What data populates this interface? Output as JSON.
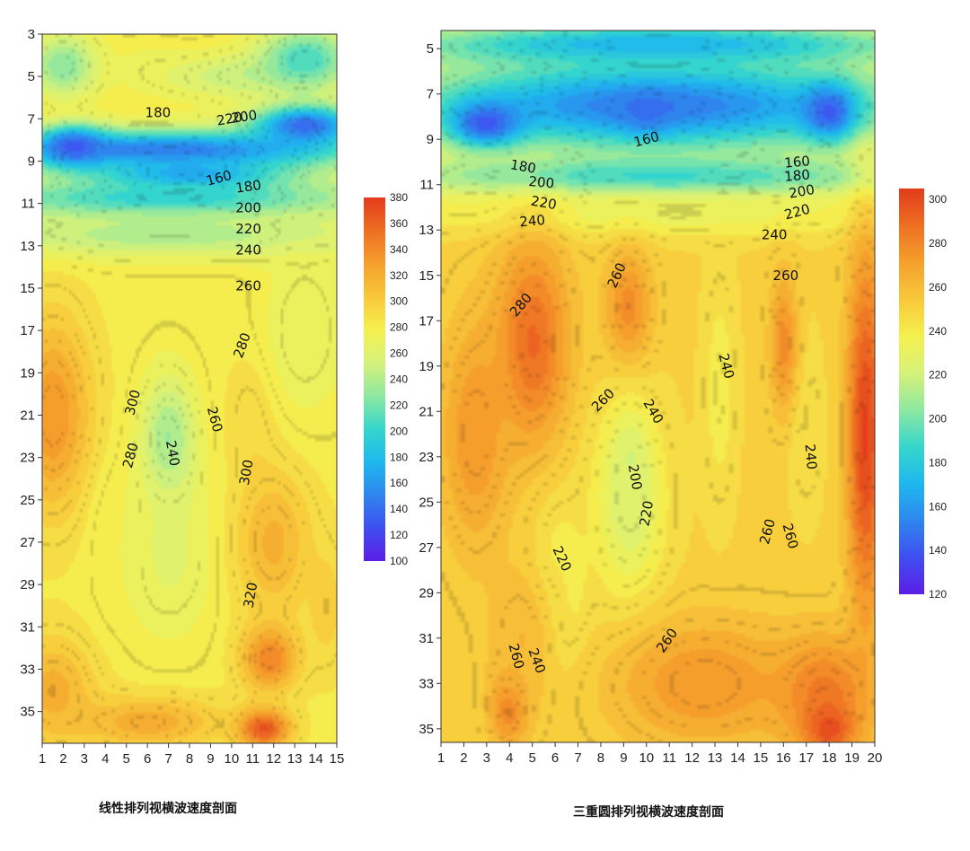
{
  "chart_data": [
    {
      "type": "heatmap",
      "subtype": "filled-contour",
      "title": "线性排列视横波速度剖面",
      "x_ticks": [
        1,
        2,
        3,
        4,
        5,
        6,
        7,
        8,
        9,
        10,
        11,
        12,
        13,
        14,
        15
      ],
      "y_ticks": [
        3,
        5,
        7,
        9,
        11,
        13,
        15,
        17,
        19,
        21,
        23,
        25,
        27,
        29,
        31,
        33,
        35
      ],
      "xlim": [
        1,
        15
      ],
      "ylim": [
        3,
        36.5
      ],
      "y_inverted": true,
      "colorbar": {
        "min": 100,
        "max": 380,
        "ticks": [
          100,
          120,
          140,
          160,
          180,
          200,
          220,
          240,
          260,
          280,
          300,
          320,
          340,
          360,
          380
        ]
      },
      "colorscale": [
        "#5c1ee6",
        "#3f4ef0",
        "#2e86ee",
        "#1eb8ef",
        "#36d6cc",
        "#8ee8a0",
        "#d6f27a",
        "#f5f04e",
        "#f8c83a",
        "#f5a02c",
        "#ee6f22",
        "#e33b1c"
      ],
      "base_value": 282,
      "features": [
        {
          "x": 7,
          "y": 8.5,
          "value": 145,
          "rx": 9.0,
          "ry": 1.0
        },
        {
          "x": 2.5,
          "y": 8.3,
          "value": 130,
          "rx": 1.5,
          "ry": 0.9
        },
        {
          "x": 13.5,
          "y": 7.3,
          "value": 135,
          "rx": 2.5,
          "ry": 1.0
        },
        {
          "x": 8,
          "y": 9.7,
          "value": 160,
          "rx": 4.5,
          "ry": 0.8
        },
        {
          "x": 7,
          "y": 10.8,
          "value": 195,
          "rx": 10,
          "ry": 1.0
        },
        {
          "x": 7,
          "y": 12.5,
          "value": 240,
          "rx": 12,
          "ry": 1.1
        },
        {
          "x": 6,
          "y": 4.5,
          "value": 275,
          "rx": 1.5,
          "ry": 1.3
        },
        {
          "x": 10,
          "y": 5.0,
          "value": 250,
          "rx": 3.5,
          "ry": 1.1
        },
        {
          "x": 2,
          "y": 4.5,
          "value": 225,
          "rx": 1.6,
          "ry": 1.5
        },
        {
          "x": 13.5,
          "y": 4.2,
          "value": 205,
          "rx": 2.2,
          "ry": 1.5
        },
        {
          "x": 1.5,
          "y": 21,
          "value": 335,
          "rx": 1.8,
          "ry": 4.5
        },
        {
          "x": 1.5,
          "y": 34,
          "value": 320,
          "rx": 2.0,
          "ry": 2.5
        },
        {
          "x": 7,
          "y": 22.5,
          "value": 228,
          "rx": 1.3,
          "ry": 3.2
        },
        {
          "x": 7,
          "y": 27.5,
          "value": 262,
          "rx": 2.2,
          "ry": 4.0
        },
        {
          "x": 4.5,
          "y": 27,
          "value": 275,
          "rx": 1.2,
          "ry": 3.5
        },
        {
          "x": 11,
          "y": 21,
          "value": 295,
          "rx": 1.2,
          "ry": 3.0
        },
        {
          "x": 12,
          "y": 27,
          "value": 318,
          "rx": 1.8,
          "ry": 3.5
        },
        {
          "x": 11.8,
          "y": 32.5,
          "value": 345,
          "rx": 1.3,
          "ry": 1.5
        },
        {
          "x": 11.5,
          "y": 35.8,
          "value": 372,
          "rx": 1.2,
          "ry": 0.9
        },
        {
          "x": 14.5,
          "y": 30,
          "value": 300,
          "rx": 1.0,
          "ry": 3.0
        },
        {
          "x": 6,
          "y": 35.5,
          "value": 322,
          "rx": 3.5,
          "ry": 1.2
        },
        {
          "x": 13.5,
          "y": 17,
          "value": 265,
          "rx": 2.0,
          "ry": 4.0
        }
      ],
      "contour_labels": [
        {
          "text": "180",
          "x": 6.5,
          "y": 6.7,
          "angle": 0
        },
        {
          "text": "220",
          "x": 9.9,
          "y": 7.0,
          "angle": -10
        },
        {
          "text": "200",
          "x": 10.6,
          "y": 6.9,
          "angle": -8
        },
        {
          "text": "160",
          "x": 9.4,
          "y": 9.8,
          "angle": -15
        },
        {
          "text": "180",
          "x": 10.8,
          "y": 10.2,
          "angle": -8
        },
        {
          "text": "200",
          "x": 10.8,
          "y": 11.2,
          "angle": 0
        },
        {
          "text": "220",
          "x": 10.8,
          "y": 12.2,
          "angle": 0
        },
        {
          "text": "240",
          "x": 10.8,
          "y": 13.2,
          "angle": 0
        },
        {
          "text": "260",
          "x": 10.8,
          "y": 14.9,
          "angle": 0
        },
        {
          "text": "280",
          "x": 10.5,
          "y": 17.7,
          "angle": -70
        },
        {
          "text": "300",
          "x": 5.3,
          "y": 20.4,
          "angle": -75
        },
        {
          "text": "280",
          "x": 5.2,
          "y": 22.9,
          "angle": -75
        },
        {
          "text": "240",
          "x": 7.2,
          "y": 22.8,
          "angle": 80
        },
        {
          "text": "260",
          "x": 9.2,
          "y": 21.2,
          "angle": 75
        },
        {
          "text": "300",
          "x": 10.7,
          "y": 23.7,
          "angle": -80
        },
        {
          "text": "320",
          "x": 10.9,
          "y": 29.5,
          "angle": -80
        }
      ]
    },
    {
      "type": "heatmap",
      "subtype": "filled-contour",
      "title": "三重圆排列视横波速度剖面",
      "x_ticks": [
        1,
        2,
        3,
        4,
        5,
        6,
        7,
        8,
        9,
        10,
        11,
        12,
        13,
        14,
        15,
        16,
        17,
        18,
        19,
        20
      ],
      "y_ticks": [
        5,
        7,
        9,
        11,
        13,
        15,
        17,
        19,
        21,
        23,
        25,
        27,
        29,
        31,
        33,
        35
      ],
      "xlim": [
        1,
        20
      ],
      "ylim": [
        4.2,
        35.6
      ],
      "y_inverted": true,
      "colorbar": {
        "min": 120,
        "max": 305,
        "ticks": [
          120,
          140,
          160,
          180,
          200,
          220,
          240,
          260,
          280,
          300
        ]
      },
      "colorscale": [
        "#5c1ee6",
        "#3f4ef0",
        "#2e86ee",
        "#1eb8ef",
        "#36d6cc",
        "#8ee8a0",
        "#d6f27a",
        "#f5f04e",
        "#f8c83a",
        "#f5a02c",
        "#ee6f22",
        "#e33b1c"
      ],
      "base_value": 250,
      "features": [
        {
          "x": 10.5,
          "y": 7.5,
          "value": 150,
          "rx": 12,
          "ry": 2.2
        },
        {
          "x": 3,
          "y": 8.3,
          "value": 138,
          "rx": 1.6,
          "ry": 1.0
        },
        {
          "x": 18,
          "y": 7.8,
          "value": 140,
          "rx": 1.2,
          "ry": 1.2
        },
        {
          "x": 10,
          "y": 7.8,
          "value": 148,
          "rx": 1.2,
          "ry": 0.8
        },
        {
          "x": 10.5,
          "y": 4.8,
          "value": 170,
          "rx": 12,
          "ry": 1.0
        },
        {
          "x": 10.5,
          "y": 10.7,
          "value": 185,
          "rx": 12,
          "ry": 1.0
        },
        {
          "x": 10.5,
          "y": 12.3,
          "value": 232,
          "rx": 12,
          "ry": 1.0
        },
        {
          "x": 5,
          "y": 18,
          "value": 290,
          "rx": 1.6,
          "ry": 4.5
        },
        {
          "x": 2.5,
          "y": 22,
          "value": 275,
          "rx": 1.5,
          "ry": 5.0
        },
        {
          "x": 9.2,
          "y": 16.5,
          "value": 280,
          "rx": 1.0,
          "ry": 2.5
        },
        {
          "x": 13.2,
          "y": 20,
          "value": 238,
          "rx": 0.7,
          "ry": 5.0
        },
        {
          "x": 17,
          "y": 22,
          "value": 228,
          "rx": 0.5,
          "ry": 2.0
        },
        {
          "x": 17,
          "y": 21.5,
          "value": 245,
          "rx": 0.8,
          "ry": 4.5
        },
        {
          "x": 16,
          "y": 18,
          "value": 278,
          "rx": 0.6,
          "ry": 3.0
        },
        {
          "x": 19.6,
          "y": 22,
          "value": 303,
          "rx": 0.8,
          "ry": 8.0
        },
        {
          "x": 9.3,
          "y": 24,
          "value": 200,
          "rx": 0.7,
          "ry": 2.2
        },
        {
          "x": 9.2,
          "y": 25,
          "value": 225,
          "rx": 1.6,
          "ry": 4.5
        },
        {
          "x": 6.2,
          "y": 29,
          "value": 220,
          "rx": 0.8,
          "ry": 2.5
        },
        {
          "x": 6.2,
          "y": 29,
          "value": 240,
          "rx": 1.4,
          "ry": 4.0
        },
        {
          "x": 4,
          "y": 34,
          "value": 290,
          "rx": 0.8,
          "ry": 1.6
        },
        {
          "x": 4.5,
          "y": 31,
          "value": 262,
          "rx": 1.5,
          "ry": 3.5
        },
        {
          "x": 12.5,
          "y": 33,
          "value": 275,
          "rx": 4.0,
          "ry": 2.8
        },
        {
          "x": 17.8,
          "y": 33.5,
          "value": 285,
          "rx": 2.0,
          "ry": 2.5
        },
        {
          "x": 18,
          "y": 35,
          "value": 300,
          "rx": 1.0,
          "ry": 1.0
        }
      ],
      "contour_labels": [
        {
          "text": "160",
          "x": 10.0,
          "y": 9.0,
          "angle": -15
        },
        {
          "text": "180",
          "x": 4.6,
          "y": 10.2,
          "angle": 10
        },
        {
          "text": "200",
          "x": 5.4,
          "y": 10.9,
          "angle": 5
        },
        {
          "text": "220",
          "x": 5.5,
          "y": 11.8,
          "angle": 10
        },
        {
          "text": "240",
          "x": 5.0,
          "y": 12.6,
          "angle": -5
        },
        {
          "text": "160",
          "x": 16.6,
          "y": 10.0,
          "angle": -5
        },
        {
          "text": "180",
          "x": 16.6,
          "y": 10.6,
          "angle": -5
        },
        {
          "text": "200",
          "x": 16.8,
          "y": 11.3,
          "angle": -10
        },
        {
          "text": "220",
          "x": 16.6,
          "y": 12.2,
          "angle": -15
        },
        {
          "text": "240",
          "x": 15.6,
          "y": 13.2,
          "angle": 0
        },
        {
          "text": "260",
          "x": 16.1,
          "y": 15.0,
          "angle": 0
        },
        {
          "text": "260",
          "x": 8.7,
          "y": 15.0,
          "angle": -65
        },
        {
          "text": "280",
          "x": 4.5,
          "y": 16.3,
          "angle": -50
        },
        {
          "text": "240",
          "x": 13.5,
          "y": 19.0,
          "angle": 75
        },
        {
          "text": "260",
          "x": 8.1,
          "y": 20.5,
          "angle": -45
        },
        {
          "text": "240",
          "x": 10.3,
          "y": 21.0,
          "angle": 60
        },
        {
          "text": "240",
          "x": 17.2,
          "y": 23.0,
          "angle": 85
        },
        {
          "text": "200",
          "x": 9.5,
          "y": 23.9,
          "angle": 80
        },
        {
          "text": "220",
          "x": 10.0,
          "y": 25.5,
          "angle": -80
        },
        {
          "text": "260",
          "x": 15.3,
          "y": 26.3,
          "angle": -75
        },
        {
          "text": "260",
          "x": 16.3,
          "y": 26.5,
          "angle": 75
        },
        {
          "text": "220",
          "x": 6.3,
          "y": 27.5,
          "angle": 65
        },
        {
          "text": "260",
          "x": 10.9,
          "y": 31.1,
          "angle": -55
        },
        {
          "text": "260",
          "x": 4.3,
          "y": 31.8,
          "angle": 75
        },
        {
          "text": "240",
          "x": 5.2,
          "y": 32.0,
          "angle": 70
        }
      ]
    }
  ]
}
